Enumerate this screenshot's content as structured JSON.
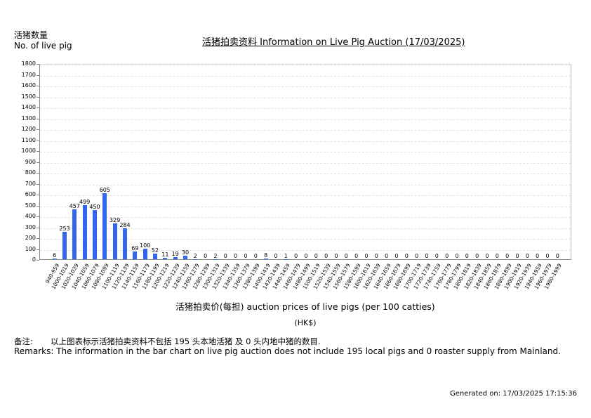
{
  "header": {
    "y_axis_label_cn": "活猪数量",
    "y_axis_label_en": "No. of live pig",
    "title": "活猪拍卖资料 Information on Live Pig Auction (17/03/2025)"
  },
  "axis": {
    "x_title": "活猪拍卖价(每担) auction prices of live pigs (per 100 catties)",
    "x_unit": "(HK$)"
  },
  "remarks": {
    "cn_label": "备注:",
    "cn_text": "以上图表标示活猪拍卖资料不包括 195 头本地活猪 及 0 头内地中猪的数目.",
    "en_text": "Remarks: The information in the bar chart on live pig auction does not include 195 local pigs and 0 roaster supply from Mainland."
  },
  "footer": {
    "generated": "Generated on: 17/03/2025 17:15:36"
  },
  "colors": {
    "bar": "#3366ee",
    "grid": "#e2e2e2",
    "axis": "#888888"
  },
  "chart_data": {
    "type": "bar",
    "title": "活猪拍卖资料 Information on Live Pig Auction (17/03/2025)",
    "xlabel": "活猪拍卖价(每担) auction prices of live pigs (per 100 catties) (HK$)",
    "ylabel": "活猪数量 No. of live pig",
    "ylim": [
      0,
      1800
    ],
    "yticks": [
      0,
      100,
      200,
      300,
      400,
      500,
      600,
      700,
      800,
      900,
      1000,
      1100,
      1200,
      1300,
      1400,
      1500,
      1600,
      1700,
      1800
    ],
    "grid": true,
    "legend": null,
    "categories": [
      "940-959",
      "1000-1019",
      "1020-1039",
      "1040-1059",
      "1060-1079",
      "1080-1099",
      "1100-1119",
      "1120-1139",
      "1140-1159",
      "1160-1179",
      "1180-1199",
      "1200-1219",
      "1220-1239",
      "1240-1259",
      "1260-1279",
      "1280-1299",
      "1300-1319",
      "1320-1339",
      "1340-1359",
      "1360-1379",
      "1380-1399",
      "1400-1419",
      "1420-1439",
      "1440-1459",
      "1460-1479",
      "1480-1499",
      "1500-1519",
      "1520-1539",
      "1540-1559",
      "1560-1579",
      "1580-1599",
      "1600-1619",
      "1620-1639",
      "1640-1659",
      "1660-1679",
      "1680-1699",
      "1700-1719",
      "1720-1739",
      "1740-1759",
      "1760-1779",
      "1780-1799",
      "1800-1819",
      "1820-1839",
      "1840-1859",
      "1860-1879",
      "1880-1899",
      "1900-1919",
      "1920-1939",
      "1940-1959",
      "1960-1979",
      "1980-1999"
    ],
    "values": [
      6,
      253,
      457,
      499,
      450,
      605,
      329,
      284,
      69,
      100,
      52,
      11,
      19,
      30,
      2,
      0,
      2,
      0,
      0,
      0,
      0,
      8,
      0,
      1,
      0,
      0,
      0,
      0,
      0,
      0,
      0,
      0,
      0,
      0,
      0,
      0,
      0,
      0,
      0,
      0,
      0,
      0,
      0,
      0,
      0,
      0,
      0,
      0,
      0,
      0,
      0
    ]
  }
}
